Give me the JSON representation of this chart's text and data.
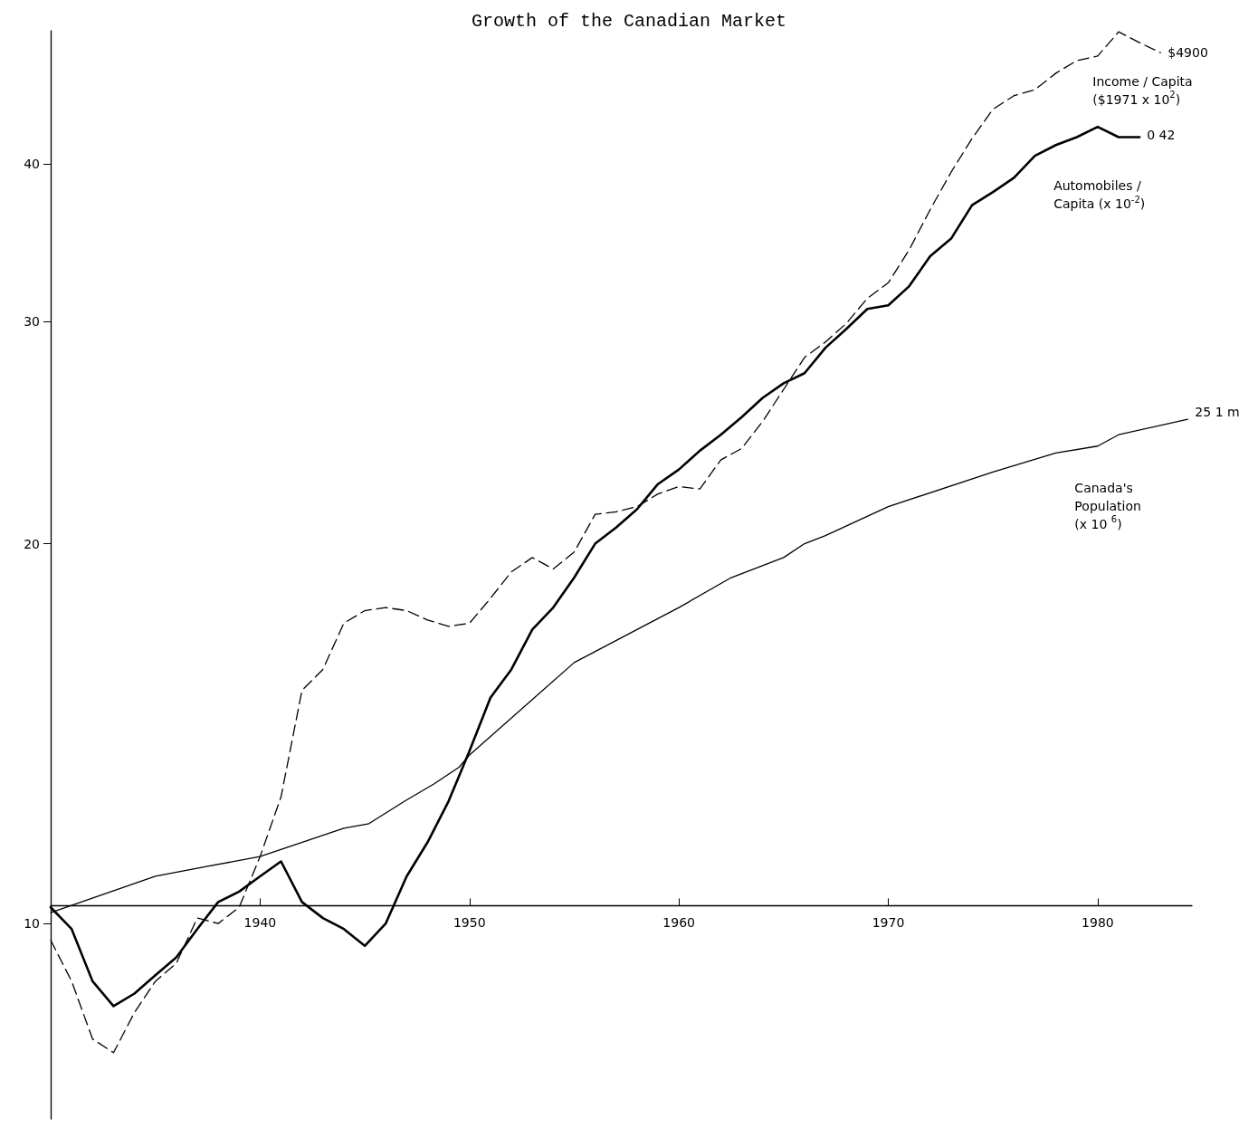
{
  "chart_data": {
    "type": "line",
    "title": "Growth of the Canadian Market",
    "log": "y",
    "grid": false,
    "legend": false,
    "marker": "none",
    "xlim": [
      1930,
      1984.5
    ],
    "xticks": [
      1940,
      1950,
      1960,
      1970,
      1980
    ],
    "ylim": [
      7,
      51
    ],
    "yticks": [
      10,
      20,
      30,
      40
    ],
    "series": [
      {
        "name": "Income / Capita\n($1971 x 10$^{2}$)",
        "color": "#000000",
        "line_style": "dashed",
        "x": [
          1930,
          1931,
          1932,
          1933,
          1934,
          1935,
          1936,
          1937,
          1938,
          1939,
          1940,
          1941,
          1942,
          1943,
          1944,
          1945,
          1946,
          1947,
          1948,
          1949,
          1950,
          1951,
          1952,
          1953,
          1954,
          1955,
          1956,
          1957,
          1958,
          1959,
          1960,
          1961,
          1962,
          1963,
          1964,
          1965,
          1966,
          1967,
          1968,
          1969,
          1970,
          1971,
          1972,
          1973,
          1974,
          1975,
          1976,
          1977,
          1978,
          1979,
          1980,
          1981,
          1982,
          1983
        ],
        "values": [
          9.7,
          9.0,
          8.1,
          7.9,
          8.5,
          9.0,
          9.3,
          10.1,
          10.0,
          10.3,
          11.3,
          12.6,
          15.3,
          15.9,
          17.3,
          17.7,
          17.8,
          17.7,
          17.4,
          17.2,
          17.3,
          18.1,
          19.0,
          19.5,
          19.1,
          19.7,
          21.1,
          21.2,
          21.4,
          21.9,
          22.2,
          22.1,
          23.3,
          23.8,
          25.0,
          26.5,
          28.1,
          28.9,
          29.9,
          31.3,
          32.2,
          34.2,
          36.8,
          39.4,
          41.9,
          44.2,
          45.3,
          45.8,
          47.2,
          48.3,
          48.7,
          50.9,
          49.9,
          49
        ]
      },
      {
        "name": "Automobiles /\nCapita (x 10$^{-2}$)",
        "color": "#000000",
        "line_style": "solid",
        "x": [
          1930,
          1931,
          1932,
          1933,
          1934,
          1935,
          1936,
          1937,
          1938,
          1939,
          1940,
          1941,
          1942,
          1943,
          1944,
          1945,
          1946,
          1947,
          1948,
          1949,
          1950,
          1951,
          1952,
          1953,
          1954,
          1955,
          1956,
          1957,
          1958,
          1959,
          1960,
          1961,
          1962,
          1963,
          1964,
          1965,
          1966,
          1967,
          1968,
          1969,
          1970,
          1971,
          1972,
          1973,
          1974,
          1975,
          1976,
          1977,
          1978,
          1979,
          1980,
          1981,
          1982
        ],
        "values": [
          10.3,
          9.9,
          9.0,
          8.6,
          8.8,
          9.1,
          9.4,
          9.9,
          10.4,
          10.6,
          10.9,
          11.2,
          10.4,
          10.1,
          9.9,
          9.6,
          10.0,
          10.9,
          11.6,
          12.5,
          13.7,
          15.1,
          15.9,
          17.1,
          17.8,
          18.8,
          20.0,
          20.6,
          21.3,
          22.3,
          22.9,
          23.7,
          24.4,
          25.2,
          26.1,
          26.8,
          27.3,
          28.6,
          29.6,
          30.7,
          30.9,
          32.0,
          33.8,
          34.9,
          37.1,
          38.0,
          39.0,
          40.6,
          41.4,
          42.0,
          42.8,
          42.0,
          42
        ]
      },
      {
        "name": "Canada's\nPopulation\n(x 10 $^{6}$)",
        "color": "#000000",
        "line_style": "solid",
        "x": [
          1930,
          1935,
          1937.5,
          1940,
          1944,
          1945.2,
          1946.9,
          1948.3,
          1949.5,
          1950,
          1955,
          1958,
          1960,
          1962.5,
          1965,
          1966,
          1967,
          1970,
          1975,
          1978,
          1980,
          1981,
          1984.3
        ],
        "values": [
          10.2,
          10.9,
          11.1,
          11.3,
          11.9,
          12.0,
          12.5,
          12.9,
          13.3,
          13.6,
          16.1,
          17.1,
          17.8,
          18.8,
          19.5,
          20.0,
          20.3,
          21.4,
          22.8,
          23.6,
          23.9,
          24.4,
          25.1
        ]
      }
    ],
    "annotations": [
      {
        "text": "$4900",
        "x": 1983,
        "y": 49
      },
      {
        "text": "0 42",
        "x": 1982,
        "y": 42
      },
      {
        "text": "25 1 m",
        "x": 1984.3,
        "y": 25.1
      }
    ]
  }
}
